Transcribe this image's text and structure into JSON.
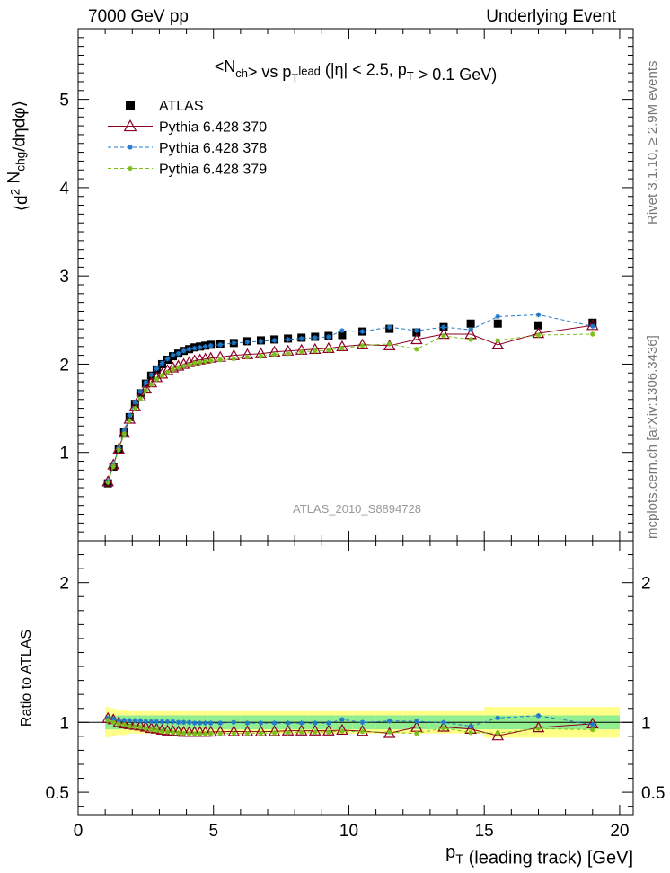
{
  "header": {
    "left": "7000 GeV pp",
    "right": "Underlying Event"
  },
  "side_labels": {
    "rivet": "Rivet 3.1.10, ≥ 2.9M events",
    "mcplots": "mcplots.cern.ch [arXiv:1306.3436]"
  },
  "colors": {
    "atlas": "#000000",
    "p370": "#8b0023",
    "p378": "#1f78c8",
    "p379": "#7cbd1a",
    "band_stat": "#90ee90",
    "band_total": "#ffff88"
  },
  "chart_data": [
    {
      "type": "scatter",
      "title": "<N_ch> vs p_T^lead (|η| < 2.5, p_T > 0.1 GeV)",
      "ylabel": "⟨d² N_chg/dηdφ⟩",
      "xlabel": "",
      "watermark": "ATLAS_2010_S8894728",
      "xlim": [
        0,
        20.5
      ],
      "ylim": [
        0,
        5.8
      ],
      "yticks": [
        1,
        2,
        3,
        4,
        5
      ],
      "legend_position": "top-left",
      "x": [
        1.1,
        1.3,
        1.5,
        1.7,
        1.9,
        2.1,
        2.3,
        2.5,
        2.7,
        2.9,
        3.1,
        3.3,
        3.5,
        3.7,
        3.9,
        4.1,
        4.3,
        4.5,
        4.7,
        4.9,
        5.25,
        5.75,
        6.25,
        6.75,
        7.25,
        7.75,
        8.25,
        8.75,
        9.25,
        9.75,
        10.5,
        11.5,
        12.5,
        13.5,
        14.5,
        15.5,
        17.0,
        19.0
      ],
      "series": [
        {
          "name": "ATLAS",
          "marker": "square",
          "values": [
            0.65,
            0.84,
            1.04,
            1.23,
            1.4,
            1.55,
            1.67,
            1.78,
            1.87,
            1.94,
            2.0,
            2.05,
            2.09,
            2.12,
            2.15,
            2.17,
            2.19,
            2.2,
            2.21,
            2.22,
            2.23,
            2.24,
            2.26,
            2.27,
            2.28,
            2.29,
            2.3,
            2.31,
            2.32,
            2.33,
            2.37,
            2.4,
            2.36,
            2.42,
            2.46,
            2.46,
            2.44,
            2.47
          ]
        },
        {
          "name": "Pythia 6.428 370",
          "marker": "triangle",
          "values": [
            0.67,
            0.86,
            1.04,
            1.22,
            1.38,
            1.52,
            1.63,
            1.72,
            1.79,
            1.85,
            1.89,
            1.93,
            1.96,
            1.98,
            2.0,
            2.02,
            2.04,
            2.05,
            2.06,
            2.07,
            2.08,
            2.1,
            2.11,
            2.12,
            2.14,
            2.15,
            2.16,
            2.17,
            2.18,
            2.2,
            2.22,
            2.21,
            2.28,
            2.34,
            2.34,
            2.22,
            2.35,
            2.44
          ]
        },
        {
          "name": "Pythia 6.428 378",
          "marker": "star",
          "values": [
            0.67,
            0.86,
            1.05,
            1.25,
            1.42,
            1.57,
            1.69,
            1.79,
            1.88,
            1.95,
            2.01,
            2.06,
            2.1,
            2.12,
            2.15,
            2.17,
            2.18,
            2.19,
            2.2,
            2.21,
            2.22,
            2.24,
            2.25,
            2.26,
            2.27,
            2.28,
            2.29,
            2.3,
            2.31,
            2.38,
            2.37,
            2.42,
            2.38,
            2.42,
            2.39,
            2.54,
            2.56,
            2.43
          ]
        },
        {
          "name": "Pythia 6.428 379",
          "marker": "star",
          "values": [
            0.66,
            0.84,
            1.03,
            1.21,
            1.36,
            1.5,
            1.61,
            1.7,
            1.77,
            1.83,
            1.87,
            1.91,
            1.94,
            1.96,
            1.98,
            1.99,
            2.01,
            2.02,
            2.03,
            2.04,
            2.05,
            2.06,
            2.08,
            2.09,
            2.11,
            2.12,
            2.14,
            2.15,
            2.16,
            2.18,
            2.21,
            2.23,
            2.17,
            2.32,
            2.28,
            2.27,
            2.33,
            2.34
          ]
        }
      ]
    },
    {
      "type": "line",
      "ylabel": "Ratio to ATLAS",
      "xlabel": "p_T (leading track) [GeV]",
      "xlim": [
        0,
        20.5
      ],
      "ylim": [
        0.34,
        2.3
      ],
      "yticks": [
        0.5,
        1,
        2
      ],
      "xticks": [
        0,
        5,
        10,
        15,
        20
      ],
      "reference": 1,
      "band_stat_halfwidth": 0.05,
      "band_total_halfwidth": [
        0.11,
        0.1,
        0.09,
        0.09,
        0.08,
        0.08,
        0.08,
        0.08,
        0.08,
        0.08,
        0.08,
        0.08,
        0.08,
        0.08,
        0.08,
        0.08,
        0.08,
        0.08,
        0.08,
        0.08,
        0.08,
        0.08,
        0.08,
        0.08,
        0.08,
        0.08,
        0.08,
        0.08,
        0.08,
        0.08,
        0.08,
        0.08,
        0.08,
        0.08,
        0.08,
        0.11,
        0.11,
        0.11
      ],
      "x": [
        1.1,
        1.3,
        1.5,
        1.7,
        1.9,
        2.1,
        2.3,
        2.5,
        2.7,
        2.9,
        3.1,
        3.3,
        3.5,
        3.7,
        3.9,
        4.1,
        4.3,
        4.5,
        4.7,
        4.9,
        5.25,
        5.75,
        6.25,
        6.75,
        7.25,
        7.75,
        8.25,
        8.75,
        9.25,
        9.75,
        10.5,
        11.5,
        12.5,
        13.5,
        14.5,
        15.5,
        17.0,
        19.0
      ],
      "series": [
        {
          "name": "Pythia 6.428 370",
          "marker": "triangle",
          "values": [
            1.03,
            1.02,
            1.0,
            0.99,
            0.985,
            0.98,
            0.975,
            0.967,
            0.957,
            0.953,
            0.945,
            0.94,
            0.937,
            0.934,
            0.93,
            0.93,
            0.93,
            0.93,
            0.93,
            0.932,
            0.933,
            0.935,
            0.934,
            0.934,
            0.935,
            0.94,
            0.94,
            0.94,
            0.94,
            0.945,
            0.937,
            0.922,
            0.966,
            0.967,
            0.952,
            0.905,
            0.963,
            0.99
          ]
        },
        {
          "name": "Pythia 6.428 378",
          "marker": "star",
          "values": [
            1.03,
            1.025,
            1.01,
            1.015,
            1.014,
            1.013,
            1.012,
            1.006,
            1.005,
            1.005,
            1.005,
            1.005,
            1.005,
            1.0,
            1.0,
            1.0,
            0.995,
            0.995,
            0.995,
            0.995,
            0.995,
            1.0,
            0.995,
            0.995,
            0.995,
            0.995,
            0.995,
            0.995,
            0.995,
            1.02,
            1.0,
            1.01,
            1.008,
            1.0,
            0.972,
            1.032,
            1.048,
            0.984
          ]
        },
        {
          "name": "Pythia 6.428 379",
          "marker": "star",
          "values": [
            1.015,
            1.0,
            0.99,
            0.984,
            0.971,
            0.968,
            0.964,
            0.955,
            0.947,
            0.943,
            0.935,
            0.932,
            0.928,
            0.925,
            0.921,
            0.917,
            0.918,
            0.918,
            0.918,
            0.919,
            0.919,
            0.92,
            0.92,
            0.921,
            0.925,
            0.926,
            0.93,
            0.931,
            0.931,
            0.936,
            0.933,
            0.929,
            0.92,
            0.959,
            0.927,
            0.923,
            0.955,
            0.947
          ]
        }
      ]
    }
  ]
}
